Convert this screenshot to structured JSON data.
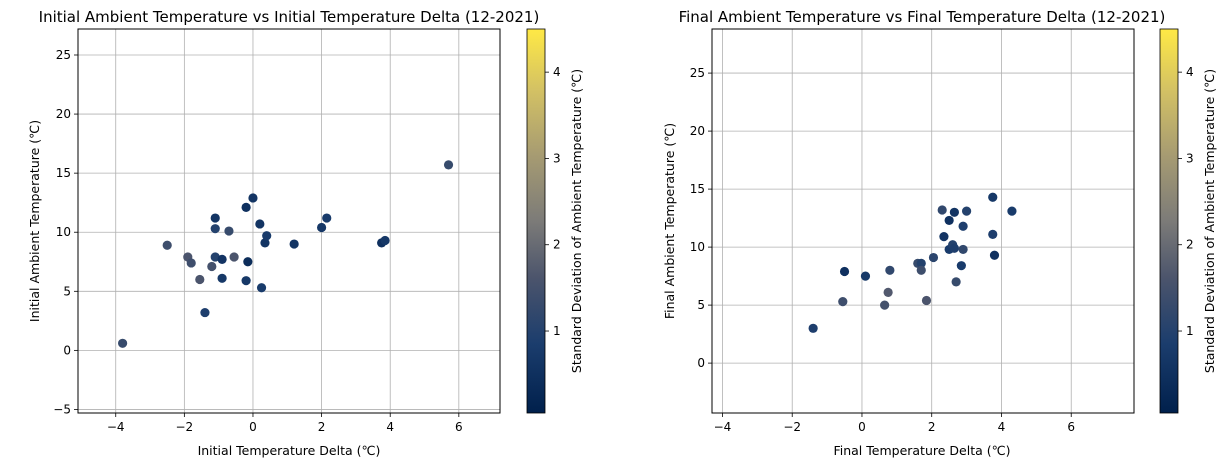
{
  "chart_data": [
    {
      "type": "scatter",
      "title": "Initial Ambient Temperature vs Initial Temperature Delta (12-2021)",
      "xlabel": "Initial Temperature Delta (℃)",
      "ylabel": "Initial Ambient Temperature (℃)",
      "colorbar_label": "Standard Deviation of Ambient Temperature (℃)",
      "xlim": [
        -5.1,
        7.2
      ],
      "ylim": [
        -5.3,
        27.2
      ],
      "xticks": [
        "−4",
        "−2",
        "0",
        "2",
        "4",
        "6"
      ],
      "yticks": [
        "−5",
        "0",
        "5",
        "10",
        "15",
        "20",
        "25"
      ],
      "colorbar_ticks": [
        "1",
        "2",
        "3",
        "4"
      ],
      "clim": [
        0.05,
        4.5
      ],
      "grid": true,
      "points": [
        {
          "x": -3.8,
          "y": 0.6,
          "c": 1.3
        },
        {
          "x": -2.5,
          "y": 8.9,
          "c": 1.4
        },
        {
          "x": -1.9,
          "y": 7.9,
          "c": 1.6
        },
        {
          "x": -1.8,
          "y": 7.4,
          "c": 1.4
        },
        {
          "x": -1.55,
          "y": 6.0,
          "c": 1.6
        },
        {
          "x": -1.4,
          "y": 3.2,
          "c": 0.9
        },
        {
          "x": -1.2,
          "y": 7.1,
          "c": 1.5
        },
        {
          "x": -1.1,
          "y": 7.9,
          "c": 1.0
        },
        {
          "x": -1.1,
          "y": 10.3,
          "c": 1.0
        },
        {
          "x": -1.1,
          "y": 11.2,
          "c": 0.6
        },
        {
          "x": -0.9,
          "y": 6.1,
          "c": 0.7
        },
        {
          "x": -0.9,
          "y": 7.7,
          "c": 0.6
        },
        {
          "x": -0.7,
          "y": 10.1,
          "c": 1.3
        },
        {
          "x": -0.55,
          "y": 7.9,
          "c": 1.6
        },
        {
          "x": -0.2,
          "y": 12.1,
          "c": 0.5
        },
        {
          "x": -0.2,
          "y": 5.9,
          "c": 0.7
        },
        {
          "x": -0.15,
          "y": 7.5,
          "c": 0.4
        },
        {
          "x": 0.0,
          "y": 12.9,
          "c": 0.6
        },
        {
          "x": 0.2,
          "y": 10.7,
          "c": 0.6
        },
        {
          "x": 0.25,
          "y": 5.3,
          "c": 0.8
        },
        {
          "x": 0.35,
          "y": 9.1,
          "c": 0.6
        },
        {
          "x": 0.4,
          "y": 9.7,
          "c": 0.8
        },
        {
          "x": 1.2,
          "y": 9.0,
          "c": 0.6
        },
        {
          "x": 2.0,
          "y": 10.4,
          "c": 0.7
        },
        {
          "x": 2.15,
          "y": 11.2,
          "c": 0.8
        },
        {
          "x": 3.75,
          "y": 9.1,
          "c": 0.5
        },
        {
          "x": 3.85,
          "y": 9.3,
          "c": 0.7
        },
        {
          "x": 5.7,
          "y": 15.7,
          "c": 1.3
        }
      ]
    },
    {
      "type": "scatter",
      "title": "Final Ambient Temperature vs Final Temperature Delta (12-2021)",
      "xlabel": "Final Temperature Delta (℃)",
      "ylabel": "Final Ambient Temperature (℃)",
      "colorbar_label": "Standard Deviation of Ambient Temperature (℃)",
      "xlim": [
        -4.3,
        7.8
      ],
      "ylim": [
        -4.3,
        28.8
      ],
      "xticks": [
        "−4",
        "−2",
        "0",
        "2",
        "4",
        "6"
      ],
      "yticks": [
        "0",
        "5",
        "10",
        "15",
        "20",
        "25"
      ],
      "colorbar_ticks": [
        "1",
        "2",
        "3",
        "4"
      ],
      "clim": [
        0.05,
        4.5
      ],
      "grid": true,
      "points": [
        {
          "x": -1.4,
          "y": 3.0,
          "c": 0.9
        },
        {
          "x": -0.55,
          "y": 5.3,
          "c": 1.4
        },
        {
          "x": -0.5,
          "y": 7.9,
          "c": 0.5
        },
        {
          "x": 0.1,
          "y": 7.5,
          "c": 0.7
        },
        {
          "x": 0.65,
          "y": 5.0,
          "c": 1.5
        },
        {
          "x": 0.75,
          "y": 6.1,
          "c": 1.7
        },
        {
          "x": 0.8,
          "y": 8.0,
          "c": 1.2
        },
        {
          "x": 1.6,
          "y": 8.6,
          "c": 1.3
        },
        {
          "x": 1.7,
          "y": 8.6,
          "c": 1.0
        },
        {
          "x": 1.7,
          "y": 8.0,
          "c": 1.4
        },
        {
          "x": 1.85,
          "y": 5.4,
          "c": 1.6
        },
        {
          "x": 2.05,
          "y": 9.1,
          "c": 1.1
        },
        {
          "x": 2.3,
          "y": 13.2,
          "c": 1.2
        },
        {
          "x": 2.35,
          "y": 10.9,
          "c": 0.6
        },
        {
          "x": 2.5,
          "y": 12.3,
          "c": 0.5
        },
        {
          "x": 2.5,
          "y": 9.8,
          "c": 0.8
        },
        {
          "x": 2.6,
          "y": 10.2,
          "c": 1.0
        },
        {
          "x": 2.65,
          "y": 9.9,
          "c": 0.9
        },
        {
          "x": 2.65,
          "y": 13.0,
          "c": 0.6
        },
        {
          "x": 2.7,
          "y": 7.0,
          "c": 1.3
        },
        {
          "x": 2.85,
          "y": 8.4,
          "c": 0.8
        },
        {
          "x": 2.9,
          "y": 11.8,
          "c": 0.9
        },
        {
          "x": 2.9,
          "y": 9.8,
          "c": 1.2
        },
        {
          "x": 3.0,
          "y": 13.1,
          "c": 1.0
        },
        {
          "x": 3.75,
          "y": 14.3,
          "c": 0.7
        },
        {
          "x": 3.75,
          "y": 11.1,
          "c": 0.9
        },
        {
          "x": 3.8,
          "y": 9.3,
          "c": 0.5
        },
        {
          "x": 4.3,
          "y": 13.1,
          "c": 0.8
        }
      ]
    }
  ]
}
